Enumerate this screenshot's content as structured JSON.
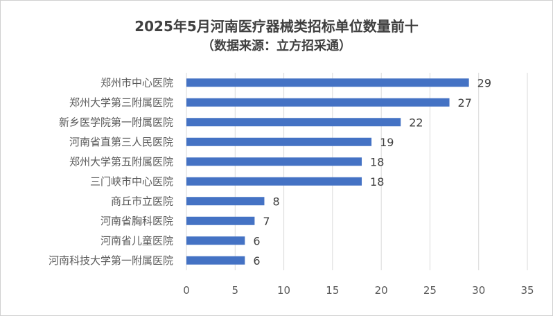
{
  "chart_data": {
    "type": "bar",
    "orientation": "horizontal",
    "title": "2025年5月河南医疗器械类招标单位数量前十",
    "subtitle": "（数据来源：立方招采通）",
    "categories": [
      "郑州市中心医院",
      "郑州大学第三附属医院",
      "新乡医学院第一附属医院",
      "河南省直第三人民医院",
      "郑州大学第五附属医院",
      "三门峡市中心医院",
      "商丘市立医院",
      "河南省胸科医院",
      "河南省儿童医院",
      "河南科技大学第一附属医院"
    ],
    "values": [
      29,
      27,
      22,
      19,
      18,
      18,
      8,
      7,
      6,
      6
    ],
    "xlim": [
      0,
      35
    ],
    "xticks": [
      0,
      5,
      10,
      15,
      20,
      25,
      30,
      35
    ],
    "grid": true,
    "bar_color": "#4472C4",
    "data_labels": true
  }
}
